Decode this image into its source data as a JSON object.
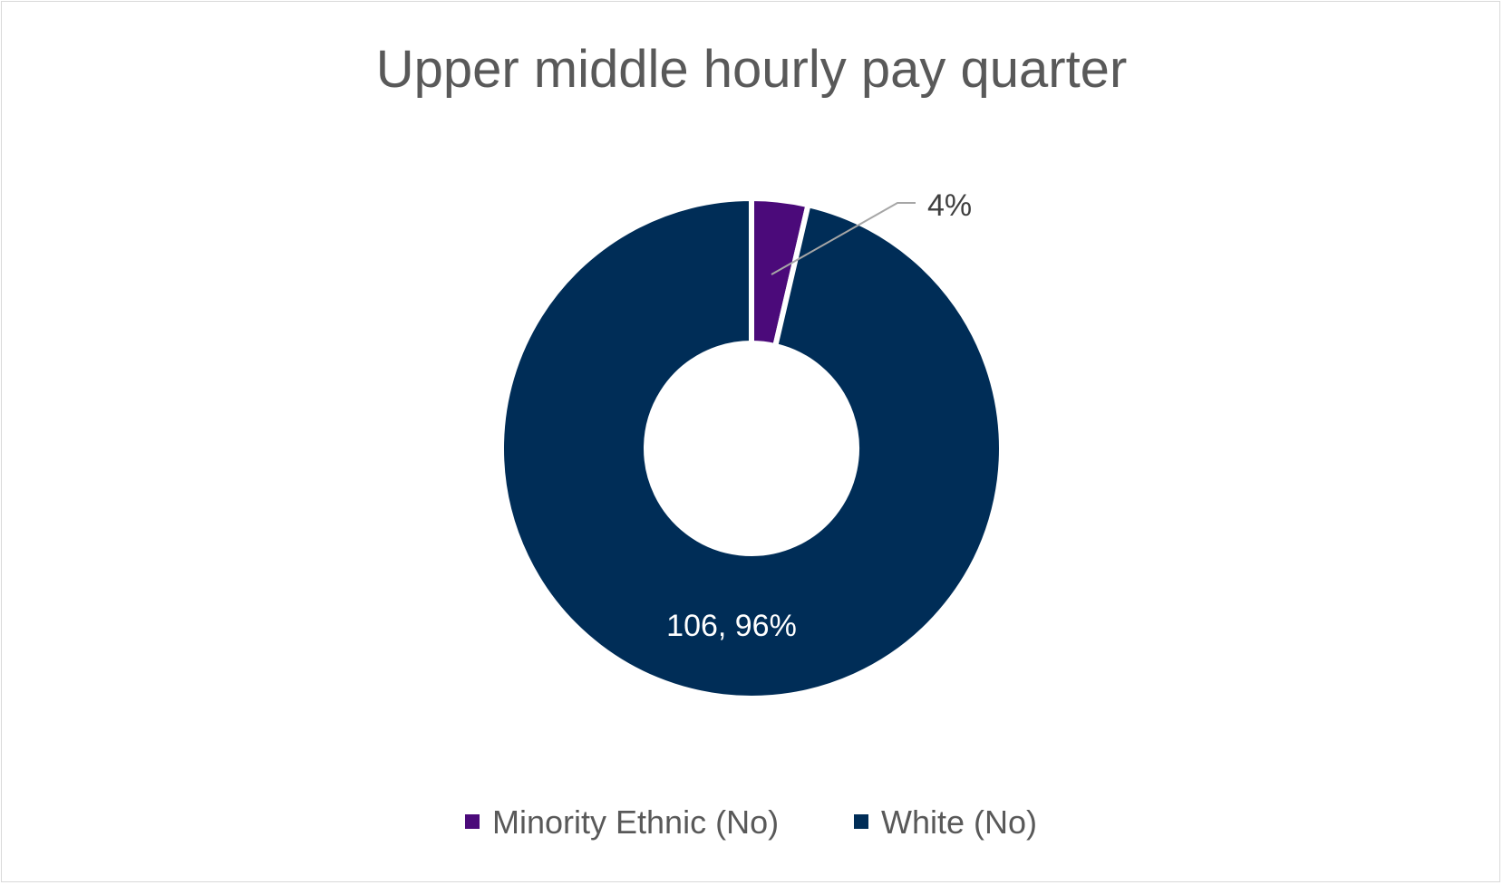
{
  "chart_data": {
    "type": "pie",
    "variant": "doughnut",
    "title": "Upper middle hourly pay quarter",
    "series": [
      {
        "name": "Minority Ethnic (No)",
        "value": 4,
        "percent": 4,
        "label": "4%",
        "color": "#4B0A7A"
      },
      {
        "name": "White (No)",
        "value": 106,
        "percent": 96,
        "label": "106, 96%",
        "color": "#002D57"
      }
    ],
    "legend_position": "bottom",
    "leader_line_color": "#a6a6a6"
  }
}
